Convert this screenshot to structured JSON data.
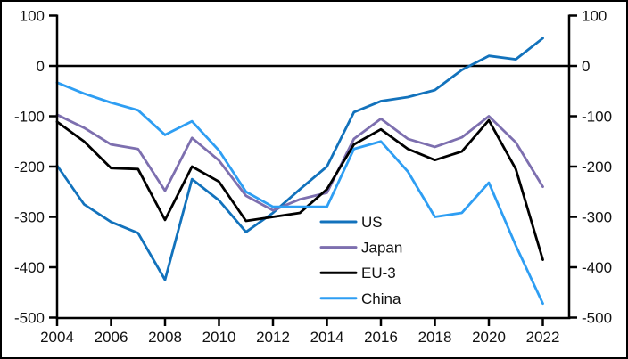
{
  "chart_data": {
    "type": "line",
    "title": "",
    "xlabel": "",
    "ylabel": "",
    "x": [
      2004,
      2005,
      2006,
      2007,
      2008,
      2009,
      2010,
      2011,
      2012,
      2013,
      2014,
      2015,
      2016,
      2017,
      2018,
      2019,
      2020,
      2021,
      2022
    ],
    "series": [
      {
        "name": "US",
        "color": "#1272BC",
        "values": [
          -198,
          -275,
          -310,
          -332,
          -425,
          -225,
          -267,
          -330,
          -292,
          -245,
          -200,
          -92,
          -70,
          -62,
          -48,
          -8,
          20,
          13,
          55
        ]
      },
      {
        "name": "Japan",
        "color": "#7D6FAF",
        "values": [
          -97,
          -123,
          -156,
          -165,
          -248,
          -143,
          -188,
          -258,
          -287,
          -265,
          -252,
          -145,
          -105,
          -145,
          -161,
          -142,
          -100,
          -152,
          -240
        ]
      },
      {
        "name": "EU-3",
        "color": "#000000",
        "values": [
          -111,
          -150,
          -203,
          -205,
          -306,
          -200,
          -230,
          -308,
          -300,
          -292,
          -245,
          -156,
          -126,
          -165,
          -187,
          -170,
          -108,
          -205,
          -385
        ]
      },
      {
        "name": "China",
        "color": "#2E9EF3",
        "values": [
          -33,
          -55,
          -73,
          -88,
          -137,
          -110,
          -168,
          -250,
          -280,
          -280,
          -280,
          -165,
          -150,
          -210,
          -300,
          -292,
          -232,
          -357,
          -472
        ]
      }
    ],
    "ylim": [
      -500,
      100
    ],
    "yticks": [
      100,
      0,
      -100,
      -200,
      -300,
      -400,
      -500
    ],
    "xticks": [
      2004,
      2006,
      2008,
      2010,
      2012,
      2014,
      2016,
      2018,
      2020,
      2022
    ],
    "dual_y_axis": true,
    "zero_line_at": 0,
    "grid": false,
    "legend": {
      "position": "inside-center-right",
      "entries": [
        "US",
        "Japan",
        "EU-3",
        "China"
      ]
    },
    "axis_color": "#000000",
    "text_color": "#111111"
  }
}
